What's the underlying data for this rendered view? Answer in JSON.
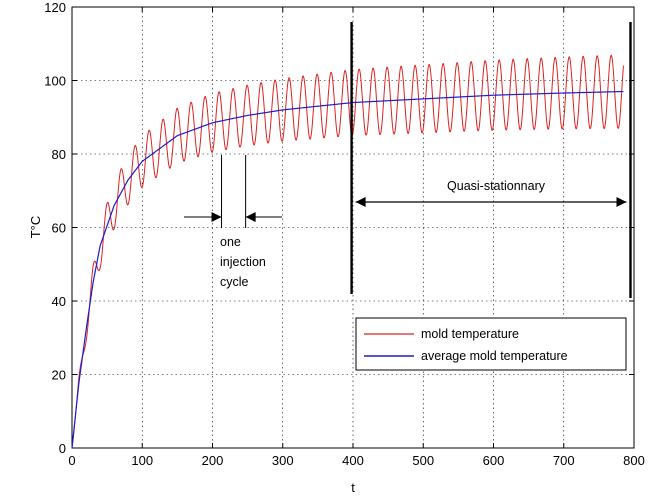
{
  "chart_data": {
    "type": "line",
    "title": "",
    "xlabel": "t",
    "ylabel": "T°C",
    "xlim": [
      0,
      800
    ],
    "ylim": [
      0,
      120
    ],
    "xticks": [
      0,
      100,
      200,
      300,
      400,
      500,
      600,
      700,
      800
    ],
    "yticks": [
      0,
      20,
      40,
      60,
      80,
      100,
      120
    ],
    "grid": true,
    "legend_position": "lower-right",
    "cycle_period": 20,
    "series": [
      {
        "name": "mold temperature",
        "color": "#dd2222",
        "style": "oscillating about average",
        "amplitude_points": [
          {
            "x": 0,
            "amp": 0
          },
          {
            "x": 40,
            "amp": 6
          },
          {
            "x": 100,
            "amp": 7
          },
          {
            "x": 200,
            "amp": 8
          },
          {
            "x": 400,
            "amp": 9
          },
          {
            "x": 785,
            "amp": 10
          }
        ]
      },
      {
        "name": "average mold temperature",
        "color": "#1c1cd0",
        "points": [
          {
            "x": 0,
            "y": 0
          },
          {
            "x": 10,
            "y": 18
          },
          {
            "x": 20,
            "y": 32
          },
          {
            "x": 30,
            "y": 45
          },
          {
            "x": 40,
            "y": 55
          },
          {
            "x": 60,
            "y": 66
          },
          {
            "x": 80,
            "y": 73
          },
          {
            "x": 100,
            "y": 78
          },
          {
            "x": 150,
            "y": 85
          },
          {
            "x": 200,
            "y": 88.5
          },
          {
            "x": 250,
            "y": 90.5
          },
          {
            "x": 300,
            "y": 92
          },
          {
            "x": 400,
            "y": 94
          },
          {
            "x": 500,
            "y": 95
          },
          {
            "x": 600,
            "y": 96
          },
          {
            "x": 700,
            "y": 96.6
          },
          {
            "x": 785,
            "y": 97
          }
        ]
      }
    ],
    "annotations": {
      "cycle_label": [
        "one",
        "injection",
        "cycle"
      ],
      "region_label": "Quasi-stationnary",
      "cycle_bracket_x": [
        210,
        250
      ],
      "region_bounds_x": [
        398,
        795
      ]
    }
  }
}
